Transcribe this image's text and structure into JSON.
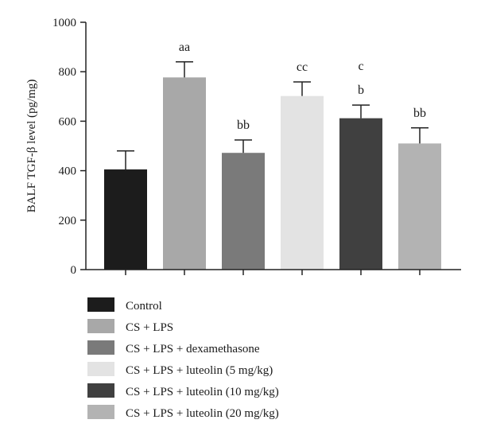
{
  "chart_data": {
    "type": "bar",
    "ylabel": "BALF TGF-β level (pg/mg)",
    "ylim": [
      0,
      1000
    ],
    "yticks": [
      0,
      200,
      400,
      600,
      800,
      1000
    ],
    "grid": false,
    "legend_position": "bottom",
    "categories": [
      "Control",
      "CS + LPS",
      "CS + LPS + dexamethasone",
      "CS + LPS + luteolin (5 mg/kg)",
      "CS + LPS + luteolin (10 mg/kg)",
      "CS + LPS + luteolin (20 mg/kg)"
    ],
    "values": [
      405,
      777,
      472,
      702,
      612,
      510
    ],
    "errors": [
      75,
      63,
      52,
      57,
      53,
      63
    ],
    "annotations": [
      [],
      [
        "aa"
      ],
      [
        "bb"
      ],
      [
        "cc"
      ],
      [
        "b",
        "c"
      ],
      [
        "bb"
      ]
    ],
    "colors": [
      "#1c1c1c",
      "#a8a8a8",
      "#7a7a7a",
      "#e3e3e3",
      "#404040",
      "#b3b3b3"
    ]
  }
}
